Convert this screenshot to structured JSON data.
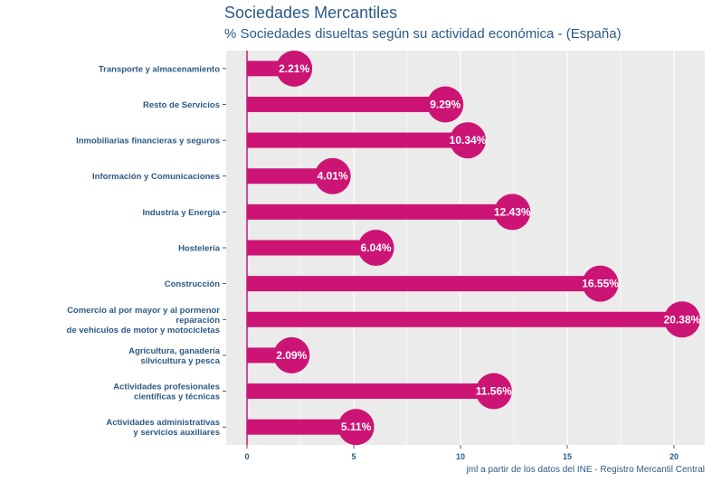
{
  "title": "Sociedades Mercantiles",
  "subtitle": "% Sociedades disueltas según su actividad económica - (España)",
  "caption": "jml a partir de los datos del INE - Registro Mercantil Central",
  "colors": {
    "bar": "#cc1475",
    "panel": "#ebebeb",
    "grid": "#ffffff",
    "text": "#2c5a86"
  },
  "chart_data": {
    "type": "bar",
    "orientation": "horizontal",
    "title": "Sociedades Mercantiles",
    "subtitle": "% Sociedades disueltas según su actividad económica - (España)",
    "xlabel": "",
    "ylabel": "",
    "xlim": [
      0,
      21.5
    ],
    "xticks": [
      0,
      5,
      10,
      15,
      20
    ],
    "categories": [
      "Transporte y almacenamiento",
      "Resto de Servicios",
      "Inmobiliarias financieras y seguros",
      "Información y Comunicaciones",
      "Industria y Energía",
      "Hostelería",
      "Construcción",
      "Comercio al por mayor y al pormenor\nreparación\nde vehículos de motor y motocicletas",
      "Agricultura, ganadería\nsilvicultura y pesca",
      "Actividades profesionales\ncientíficas y técnicas",
      "Actividades administrativas\ny servicios auxiliares"
    ],
    "values": [
      2.21,
      9.29,
      10.34,
      4.01,
      12.43,
      6.04,
      16.55,
      20.38,
      2.09,
      11.56,
      5.11
    ],
    "value_labels": [
      "2.21%",
      "9.29%",
      "10.34%",
      "4.01%",
      "12.43%",
      "6.04%",
      "16.55%",
      "20.38%",
      "2.09%",
      "11.56%",
      "5.11%"
    ]
  }
}
